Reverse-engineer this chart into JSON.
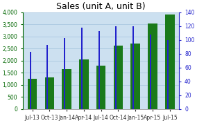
{
  "title": "Sales (unit A, unit B)",
  "categories": [
    "Jul-13",
    "Oct-13",
    "Jan-14",
    "Apr-14",
    "Jul-14",
    "Oct-14",
    "Jan-15",
    "Apr-15",
    "Jul-15"
  ],
  "green_bars": [
    1250,
    1310,
    1660,
    2060,
    1790,
    2620,
    2700,
    3530,
    3900
  ],
  "blue_bars_right": [
    83,
    93,
    103,
    118,
    113,
    120,
    120,
    108,
    100
  ],
  "left_ylim": [
    0,
    4000
  ],
  "left_yticks": [
    0,
    500,
    1000,
    1500,
    2000,
    2500,
    3000,
    3500,
    4000
  ],
  "right_ylim": [
    0,
    140
  ],
  "right_yticks": [
    0,
    20,
    40,
    60,
    80,
    100,
    120,
    140
  ],
  "green_bar_width": 0.55,
  "blue_bar_width": 0.08,
  "green_color": "#1a7a1a",
  "blue_color": "#2222cc",
  "bg_color": "#cce0f0",
  "plot_bg_color": "#cce0f0",
  "title_fontsize": 9,
  "tick_fontsize": 5.5,
  "left_tick_color": "#006600",
  "right_tick_color": "#2222cc",
  "grid_color": "#aac8e0"
}
